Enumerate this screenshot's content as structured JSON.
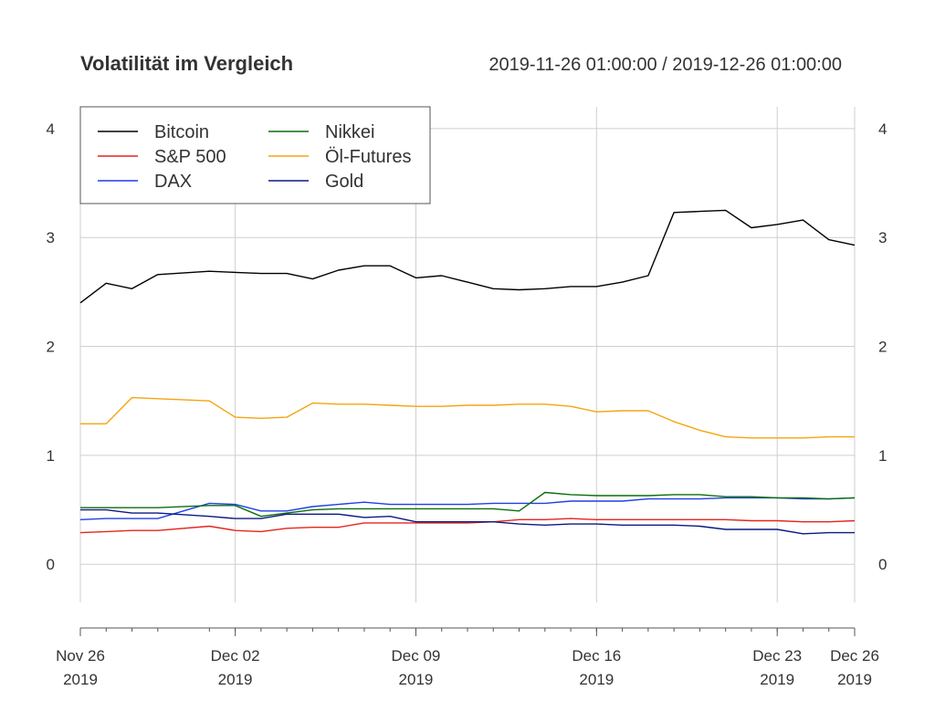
{
  "chart_data": {
    "type": "line",
    "title": "Volatilität im Vergleich",
    "date_range": "2019-11-26 01:00:00 / 2019-12-26 01:00:00",
    "x": [
      "2019-11-26",
      "2019-11-27",
      "2019-11-28",
      "2019-11-29",
      "2019-12-01",
      "2019-12-02",
      "2019-12-03",
      "2019-12-04",
      "2019-12-05",
      "2019-12-06",
      "2019-12-07",
      "2019-12-08",
      "2019-12-09",
      "2019-12-10",
      "2019-12-11",
      "2019-12-12",
      "2019-12-13",
      "2019-12-14",
      "2019-12-15",
      "2019-12-16",
      "2019-12-17",
      "2019-12-18",
      "2019-12-19",
      "2019-12-20",
      "2019-12-21",
      "2019-12-22",
      "2019-12-23",
      "2019-12-24",
      "2019-12-25",
      "2019-12-26"
    ],
    "series": [
      {
        "name": "Bitcoin",
        "color": "#000000",
        "values": [
          2.4,
          2.58,
          2.53,
          2.66,
          2.69,
          2.68,
          2.67,
          2.67,
          2.62,
          2.7,
          2.74,
          2.74,
          2.63,
          2.65,
          2.59,
          2.53,
          2.52,
          2.53,
          2.55,
          2.55,
          2.59,
          2.65,
          3.23,
          3.24,
          3.25,
          3.09,
          3.12,
          3.16,
          2.98,
          2.93
        ]
      },
      {
        "name": "S&P 500",
        "color": "#e3261c",
        "values": [
          0.29,
          0.3,
          0.31,
          0.31,
          0.35,
          0.31,
          0.3,
          0.33,
          0.34,
          0.34,
          0.38,
          0.38,
          0.38,
          0.38,
          0.38,
          0.39,
          0.41,
          0.41,
          0.42,
          0.41,
          0.41,
          0.41,
          0.41,
          0.41,
          0.41,
          0.4,
          0.4,
          0.39,
          0.39,
          0.4
        ]
      },
      {
        "name": "DAX",
        "color": "#1f3fe8",
        "values": [
          0.41,
          0.42,
          0.42,
          0.42,
          0.56,
          0.55,
          0.49,
          0.49,
          0.53,
          0.55,
          0.57,
          0.55,
          0.55,
          0.55,
          0.55,
          0.56,
          0.56,
          0.56,
          0.58,
          0.58,
          0.58,
          0.6,
          0.6,
          0.6,
          0.61,
          0.61,
          0.61,
          0.6,
          0.6,
          0.61
        ]
      },
      {
        "name": "Nikkei",
        "color": "#0c6e0c",
        "values": [
          0.52,
          0.52,
          0.52,
          0.52,
          0.54,
          0.54,
          0.44,
          0.47,
          0.5,
          0.51,
          0.51,
          0.51,
          0.51,
          0.51,
          0.51,
          0.51,
          0.49,
          0.66,
          0.64,
          0.63,
          0.63,
          0.63,
          0.64,
          0.64,
          0.62,
          0.62,
          0.61,
          0.61,
          0.6,
          0.61
        ]
      },
      {
        "name": "Öl-Futures",
        "color": "#f5a40f",
        "values": [
          1.29,
          1.29,
          1.53,
          1.52,
          1.5,
          1.35,
          1.34,
          1.35,
          1.48,
          1.47,
          1.47,
          1.46,
          1.45,
          1.45,
          1.46,
          1.46,
          1.47,
          1.47,
          1.45,
          1.4,
          1.41,
          1.41,
          1.31,
          1.23,
          1.17,
          1.16,
          1.16,
          1.16,
          1.17,
          1.17
        ]
      },
      {
        "name": "Gold",
        "color": "#0b1a80",
        "values": [
          0.5,
          0.5,
          0.47,
          0.47,
          0.44,
          0.42,
          0.42,
          0.46,
          0.46,
          0.46,
          0.43,
          0.44,
          0.39,
          0.39,
          0.39,
          0.39,
          0.37,
          0.36,
          0.37,
          0.37,
          0.36,
          0.36,
          0.36,
          0.35,
          0.32,
          0.32,
          0.32,
          0.28,
          0.29,
          0.29
        ]
      }
    ],
    "ylim": [
      -0.35,
      4.2
    ],
    "yticks": [
      0,
      1,
      2,
      3,
      4
    ],
    "ytick_labels": [
      "0",
      "1",
      "2",
      "3",
      "4"
    ],
    "xticks": [
      {
        "date": "2019-11-26",
        "label": "Nov 26",
        "year": "2019"
      },
      {
        "date": "2019-12-02",
        "label": "Dec 02",
        "year": "2019"
      },
      {
        "date": "2019-12-09",
        "label": "Dec 09",
        "year": "2019"
      },
      {
        "date": "2019-12-16",
        "label": "Dec 16",
        "year": "2019"
      },
      {
        "date": "2019-12-23",
        "label": "Dec 23",
        "year": "2019"
      },
      {
        "date": "2019-12-26",
        "label": "Dec 26",
        "year": "2019"
      }
    ],
    "grid": true,
    "legend_position": "top-left"
  }
}
